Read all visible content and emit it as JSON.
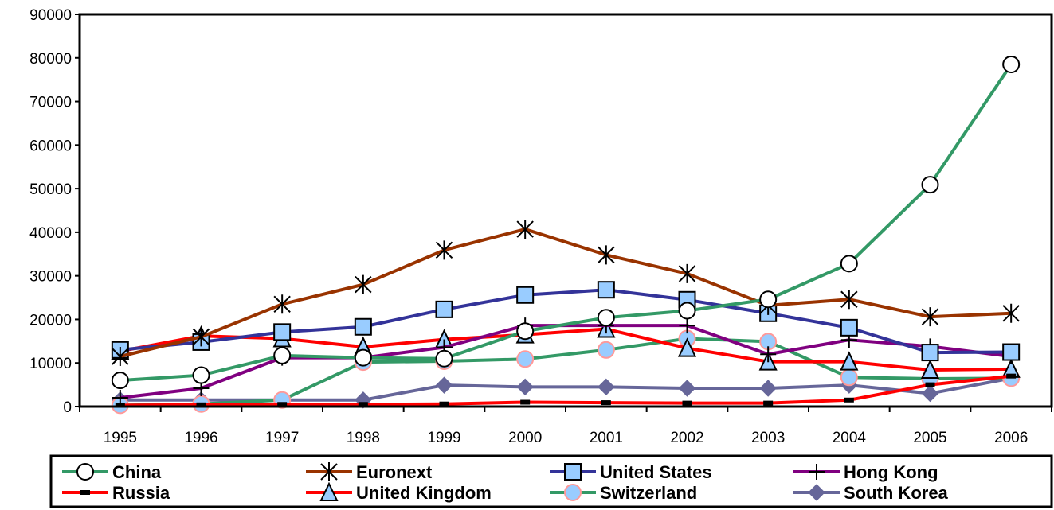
{
  "chart_data": {
    "type": "line",
    "title": "",
    "xlabel": "",
    "ylabel": "",
    "categories": [
      "1995",
      "1996",
      "1997",
      "1998",
      "1999",
      "2000",
      "2001",
      "2002",
      "2003",
      "2004",
      "2005",
      "2006"
    ],
    "ylim": [
      0,
      90000
    ],
    "yticks": [
      "0",
      "10000",
      "20000",
      "30000",
      "40000",
      "50000",
      "60000",
      "70000",
      "80000",
      "90000"
    ],
    "grid": false,
    "legend_position": "bottom",
    "series": [
      {
        "name": "China",
        "color": "#339966",
        "marker": "circle",
        "values": [
          6000,
          7200,
          11700,
          11200,
          11000,
          17300,
          20400,
          22000,
          24600,
          32800,
          50900,
          78500
        ]
      },
      {
        "name": "Euronext",
        "color": "#993300",
        "marker": "asterisk",
        "values": [
          11500,
          16000,
          23500,
          28000,
          35900,
          40700,
          34800,
          30500,
          23200,
          24600,
          20600,
          21400
        ]
      },
      {
        "name": "United States",
        "color": "#333399",
        "marker": "square",
        "values": [
          13000,
          14800,
          17100,
          18300,
          22300,
          25600,
          26800,
          24500,
          21400,
          18100,
          12400,
          12500
        ]
      },
      {
        "name": "Hong Kong",
        "color": "#800080",
        "marker": "plus",
        "values": [
          2000,
          4200,
          11200,
          11200,
          13600,
          18600,
          18600,
          18600,
          12000,
          15300,
          13800,
          11500
        ]
      },
      {
        "name": "Russia",
        "color": "#ff0000",
        "marker": "dash",
        "values": [
          300,
          400,
          500,
          500,
          600,
          1000,
          900,
          800,
          800,
          1500,
          5000,
          7000
        ]
      },
      {
        "name": "United Kingdom",
        "color": "#ff0000",
        "marker": "triangle",
        "values": [
          12700,
          16200,
          15600,
          13700,
          15400,
          16500,
          17800,
          13400,
          10300,
          10300,
          8400,
          8600
        ]
      },
      {
        "name": "Switzerland",
        "color": "#339966",
        "marker": "circle-light",
        "values": [
          300,
          600,
          1500,
          10200,
          10400,
          10900,
          13000,
          15600,
          14900,
          6700,
          6400,
          6500
        ]
      },
      {
        "name": "South Korea",
        "color": "#666699",
        "marker": "diamond",
        "values": [
          1500,
          1500,
          1500,
          1500,
          4900,
          4500,
          4500,
          4200,
          4200,
          4900,
          3000,
          6500
        ]
      }
    ]
  }
}
